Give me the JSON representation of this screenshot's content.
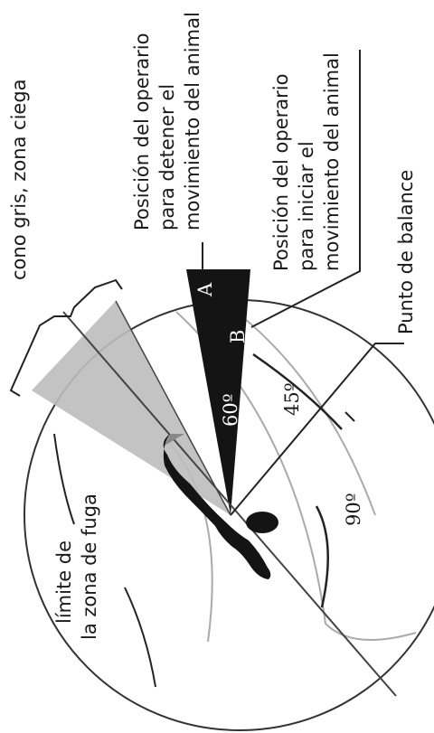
{
  "labels": {
    "stop_position": [
      "Posición del operario",
      "para detener el",
      "movimiento del animal"
    ],
    "start_position": [
      "Posición del operario",
      "para iniciar el",
      "movimiento del animal"
    ],
    "blind_zone": "cono gris, zona ciega",
    "balance_point": "Punto de balance",
    "flight_zone": [
      "límite de",
      "la zona de fuga"
    ],
    "point_a": "A",
    "point_b": "B",
    "angle_60": "60º",
    "angle_45": "45º",
    "angle_90": "90º"
  },
  "colors": {
    "blind_cone": "#bdbdbd",
    "sector": "#141414",
    "lines": "#333333",
    "inner_arcs": "#aaaaaa"
  }
}
